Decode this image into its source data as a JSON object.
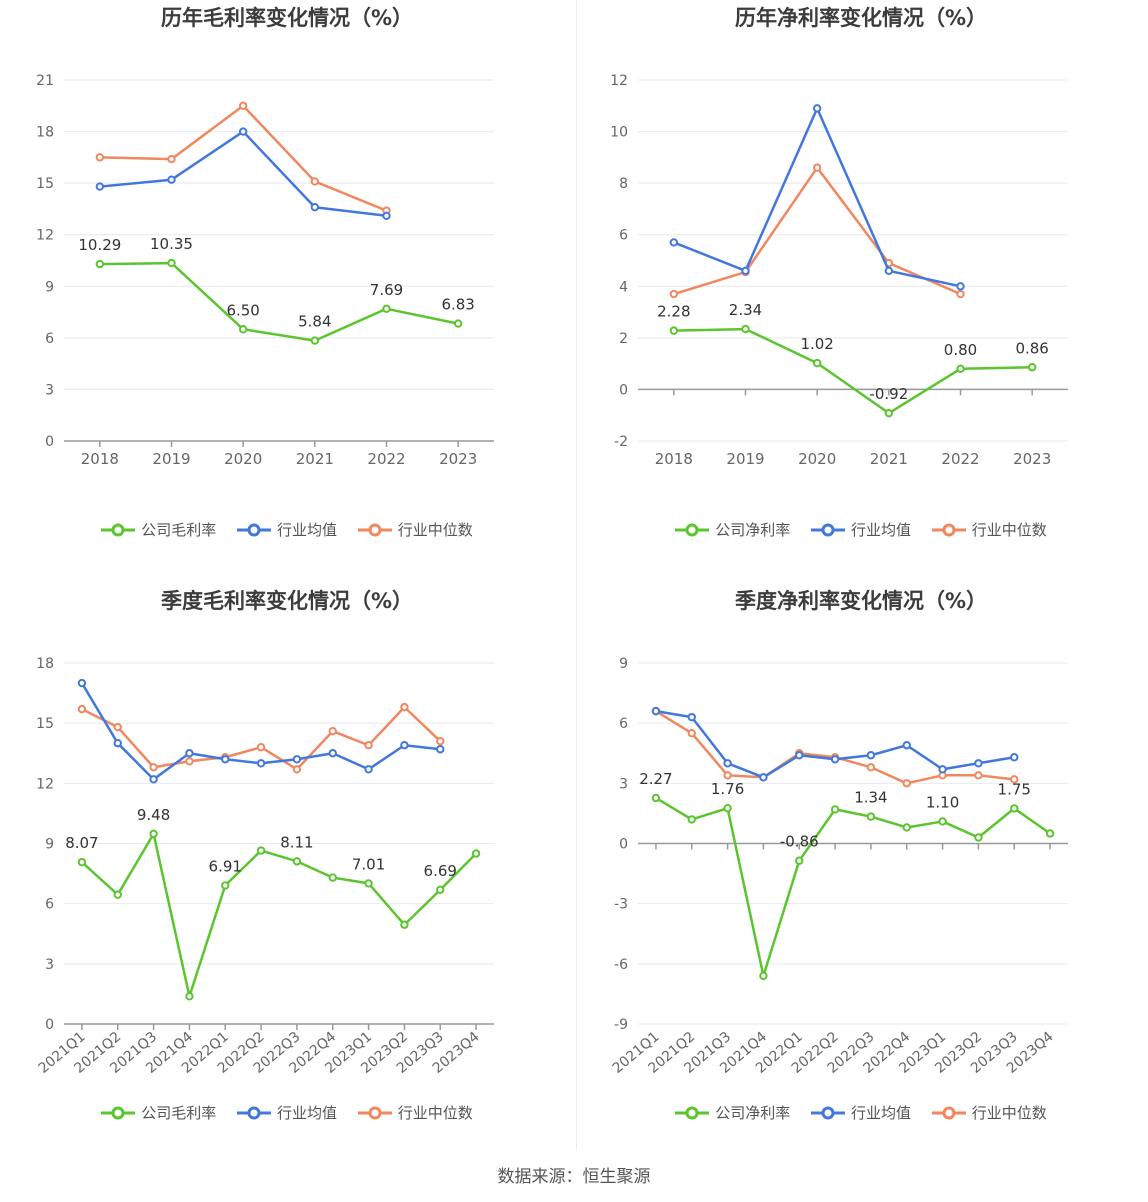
{
  "colors": {
    "company": "#5ac52e",
    "avg": "#4277dd",
    "median": "#f0875e"
  },
  "source": "数据来源：恒生聚源",
  "chart_data": [
    {
      "id": "annual-gross",
      "type": "line",
      "title": "历年毛利率变化情况（%）",
      "categories": [
        "2018",
        "2019",
        "2020",
        "2021",
        "2022",
        "2023"
      ],
      "ylim": [
        0,
        21
      ],
      "yticks": [
        0,
        3,
        6,
        9,
        12,
        15,
        18,
        21
      ],
      "series": [
        {
          "name": "公司毛利率",
          "values": [
            10.29,
            10.35,
            6.5,
            5.84,
            7.69,
            6.83
          ],
          "labels": [
            "10.29",
            "10.35",
            "6.50",
            "5.84",
            "7.69",
            "6.83"
          ]
        },
        {
          "name": "行业均值",
          "values": [
            14.8,
            15.2,
            18.0,
            13.6,
            13.1,
            null
          ]
        },
        {
          "name": "行业中位数",
          "values": [
            16.5,
            16.4,
            19.5,
            15.1,
            13.4,
            null
          ]
        }
      ]
    },
    {
      "id": "annual-net",
      "type": "line",
      "title": "历年净利率变化情况（%）",
      "categories": [
        "2018",
        "2019",
        "2020",
        "2021",
        "2022",
        "2023"
      ],
      "ylim": [
        -2,
        12
      ],
      "yticks": [
        -2,
        0,
        2,
        4,
        6,
        8,
        10,
        12
      ],
      "series": [
        {
          "name": "公司净利率",
          "values": [
            2.28,
            2.34,
            1.02,
            -0.92,
            0.8,
            0.86
          ],
          "labels": [
            "2.28",
            "2.34",
            "1.02",
            "-0.92",
            "0.80",
            "0.86"
          ]
        },
        {
          "name": "行业均值",
          "values": [
            5.7,
            4.6,
            10.9,
            4.6,
            4.0,
            null
          ]
        },
        {
          "name": "行业中位数",
          "values": [
            3.7,
            4.55,
            8.6,
            4.9,
            3.7,
            null
          ]
        }
      ]
    },
    {
      "id": "quarterly-gross",
      "type": "line",
      "title": "季度毛利率变化情况（%）",
      "categories": [
        "2021Q1",
        "2021Q2",
        "2021Q3",
        "2021Q4",
        "2022Q1",
        "2022Q2",
        "2022Q3",
        "2022Q4",
        "2023Q1",
        "2023Q2",
        "2023Q3",
        "2023Q4"
      ],
      "ylim": [
        0,
        18
      ],
      "yticks": [
        0,
        3,
        6,
        9,
        12,
        15,
        18
      ],
      "series": [
        {
          "name": "公司毛利率",
          "values": [
            8.07,
            6.45,
            9.48,
            1.38,
            6.91,
            8.65,
            8.11,
            7.3,
            7.01,
            4.95,
            6.69,
            8.5
          ],
          "labels": [
            "8.07",
            "",
            "9.48",
            "",
            "6.91",
            "",
            "8.11",
            "",
            "7.01",
            "",
            "6.69",
            ""
          ]
        },
        {
          "name": "行业均值",
          "values": [
            17.0,
            14.0,
            12.2,
            13.5,
            13.2,
            13.0,
            13.2,
            13.5,
            12.7,
            13.9,
            13.7,
            null
          ]
        },
        {
          "name": "行业中位数",
          "values": [
            15.7,
            14.8,
            12.8,
            13.1,
            13.3,
            13.8,
            12.7,
            14.6,
            13.9,
            15.8,
            14.1,
            null
          ]
        }
      ]
    },
    {
      "id": "quarterly-net",
      "type": "line",
      "title": "季度净利率变化情况（%）",
      "categories": [
        "2021Q1",
        "2021Q2",
        "2021Q3",
        "2021Q4",
        "2022Q1",
        "2022Q2",
        "2022Q3",
        "2022Q4",
        "2023Q1",
        "2023Q2",
        "2023Q3",
        "2023Q4"
      ],
      "ylim": [
        -9,
        9
      ],
      "yticks": [
        -9,
        -6,
        -3,
        0,
        3,
        6,
        9
      ],
      "series": [
        {
          "name": "公司净利率",
          "values": [
            2.27,
            1.2,
            1.76,
            -6.6,
            -0.86,
            1.7,
            1.34,
            0.8,
            1.1,
            0.3,
            1.75,
            0.5
          ],
          "labels": [
            "2.27",
            "",
            "1.76",
            "",
            "-0.86",
            "",
            "1.34",
            "",
            "1.10",
            "",
            "1.75",
            ""
          ]
        },
        {
          "name": "行业均值",
          "values": [
            6.6,
            6.3,
            4.0,
            3.3,
            4.4,
            4.2,
            4.4,
            4.9,
            3.7,
            4.0,
            4.3,
            null
          ]
        },
        {
          "name": "行业中位数",
          "values": [
            6.6,
            5.5,
            3.4,
            3.3,
            4.5,
            4.3,
            3.8,
            3.0,
            3.4,
            3.4,
            3.2,
            null
          ]
        }
      ]
    }
  ]
}
